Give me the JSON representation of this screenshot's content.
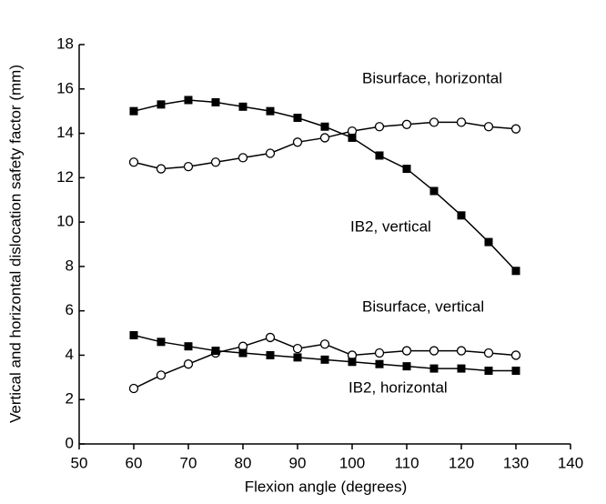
{
  "chart_data": {
    "type": "line",
    "x_label": "Flexion angle (degrees)",
    "y_label": "Vertical and horizontal dislocation safety factor (mm)",
    "x": [
      60,
      65,
      70,
      75,
      80,
      85,
      90,
      95,
      100,
      105,
      110,
      115,
      120,
      125,
      130
    ],
    "series": [
      {
        "name": "Bisurface, horizontal",
        "color": "#000000",
        "marker": "circle",
        "values": [
          12.7,
          12.4,
          12.5,
          12.7,
          12.9,
          13.1,
          13.6,
          13.8,
          14.1,
          14.3,
          14.4,
          14.5,
          14.5,
          14.3,
          14.2
        ]
      },
      {
        "name": "IB2, vertical",
        "color": "#000000",
        "marker": "square",
        "values": [
          15.0,
          15.3,
          15.5,
          15.4,
          15.2,
          15.0,
          14.7,
          14.3,
          13.8,
          13.0,
          12.4,
          11.4,
          10.3,
          9.1,
          7.8
        ]
      },
      {
        "name": "Bisurface, vertical",
        "color": "#000000",
        "marker": "circle",
        "values": [
          2.5,
          3.1,
          3.6,
          4.1,
          4.4,
          4.8,
          4.3,
          4.5,
          4.0,
          4.1,
          4.2,
          4.2,
          4.2,
          4.1,
          4.0
        ]
      },
      {
        "name": "IB2, horizontal",
        "color": "#000000",
        "marker": "square",
        "values": [
          4.9,
          4.6,
          4.4,
          4.2,
          4.1,
          4.0,
          3.9,
          3.8,
          3.7,
          3.6,
          3.5,
          3.4,
          3.4,
          3.3,
          3.3
        ]
      }
    ],
    "xlim": [
      50,
      140
    ],
    "xticks": [
      50,
      60,
      70,
      80,
      90,
      100,
      110,
      120,
      130,
      140
    ],
    "ylim": [
      0,
      18
    ],
    "yticks": [
      0,
      2,
      4,
      6,
      8,
      10,
      12,
      14,
      16,
      18
    ],
    "grid": false
  }
}
